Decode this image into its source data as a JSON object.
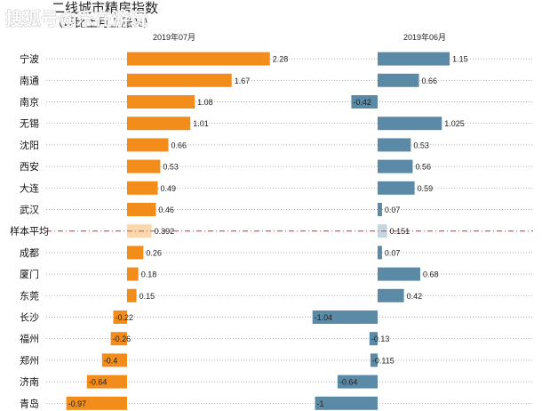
{
  "watermark": "搜狐号@乐在游玩",
  "chart_data": {
    "type": "bar",
    "title": "二线城市精房指数",
    "subtitle": "（环比上月上涨%）",
    "categories": [
      "宁波",
      "南通",
      "南京",
      "无锡",
      "沈阳",
      "西安",
      "大连",
      "武汉",
      "样本平均",
      "成都",
      "厦门",
      "东莞",
      "长沙",
      "福州",
      "郑州",
      "济南",
      "青岛"
    ],
    "average_category": "样本平均",
    "grid": true,
    "series": [
      {
        "name": "2019年07月",
        "color": "#f28c1a",
        "values": [
          2.28,
          1.67,
          1.08,
          1.01,
          0.66,
          0.53,
          0.49,
          0.46,
          0.392,
          0.26,
          0.18,
          0.15,
          -0.22,
          -0.26,
          -0.4,
          -0.64,
          -0.97
        ],
        "labels": [
          "2.28",
          "1.67",
          "1.08",
          "1.01",
          "0.66",
          "0.53",
          "0.49",
          "0.46",
          "0.392",
          "0.26",
          "0.18",
          "0.15",
          "-0.22",
          "-0.26",
          "-0.4",
          "-0.64",
          "-0.97"
        ]
      },
      {
        "name": "2019年06月",
        "color": "#5b8aa6",
        "values": [
          1.15,
          0.66,
          -0.42,
          1.025,
          0.53,
          0.56,
          0.59,
          0.07,
          0.151,
          0.07,
          0.68,
          0.42,
          -1.04,
          -0.13,
          -0.115,
          -0.64,
          -1
        ],
        "labels": [
          "1.15",
          "0.66",
          "-0.42",
          "1.025",
          "0.53",
          "0.56",
          "0.59",
          "0.07",
          "0.151",
          "0.07",
          "0.68",
          "0.42",
          "-1.04",
          "-0.13",
          "-0.115",
          "-0.64",
          "-1"
        ]
      }
    ]
  }
}
